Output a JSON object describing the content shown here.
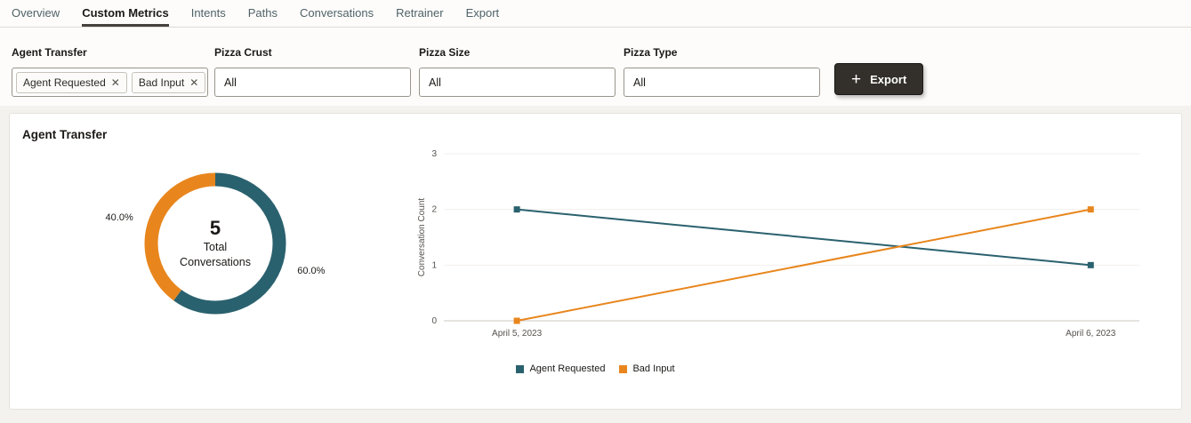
{
  "colors": {
    "teal": "#2a616e",
    "orange": "#e8861d",
    "tab_underline": "#45423e"
  },
  "tabs": [
    {
      "label": "Overview",
      "active": false
    },
    {
      "label": "Custom Metrics",
      "active": true
    },
    {
      "label": "Intents",
      "active": false
    },
    {
      "label": "Paths",
      "active": false
    },
    {
      "label": "Conversations",
      "active": false
    },
    {
      "label": "Retrainer",
      "active": false
    },
    {
      "label": "Export",
      "active": false
    }
  ],
  "filters": {
    "agent_transfer": {
      "label": "Agent Transfer",
      "chips": [
        "Agent Requested",
        "Bad Input"
      ]
    },
    "pizza_crust": {
      "label": "Pizza Crust",
      "value": "All"
    },
    "pizza_size": {
      "label": "Pizza Size",
      "value": "All"
    },
    "pizza_type": {
      "label": "Pizza Type",
      "value": "All"
    }
  },
  "export_button": {
    "label": "Export",
    "icon": "plus-icon"
  },
  "card": {
    "title": "Agent Transfer"
  },
  "chart_data": [
    {
      "type": "pie",
      "title": "Agent Transfer",
      "slices": [
        {
          "label": "Agent Requested",
          "percent": 60.0,
          "color_key": "teal"
        },
        {
          "label": "Bad Input",
          "percent": 40.0,
          "color_key": "orange"
        }
      ],
      "center_value": "5",
      "center_label_lines": [
        "Total",
        "Conversations"
      ],
      "donut": true
    },
    {
      "type": "line",
      "x": [
        "April 5, 2023",
        "April 6, 2023"
      ],
      "series": [
        {
          "name": "Agent Requested",
          "values": [
            2,
            1
          ],
          "color_key": "teal"
        },
        {
          "name": "Bad Input",
          "values": [
            0,
            2
          ],
          "color_key": "orange"
        }
      ],
      "ylabel": "Conversation Count",
      "ylim": [
        0,
        3
      ],
      "yticks": [
        0,
        1,
        2,
        3
      ],
      "grid": false,
      "legend_position": "bottom"
    }
  ]
}
